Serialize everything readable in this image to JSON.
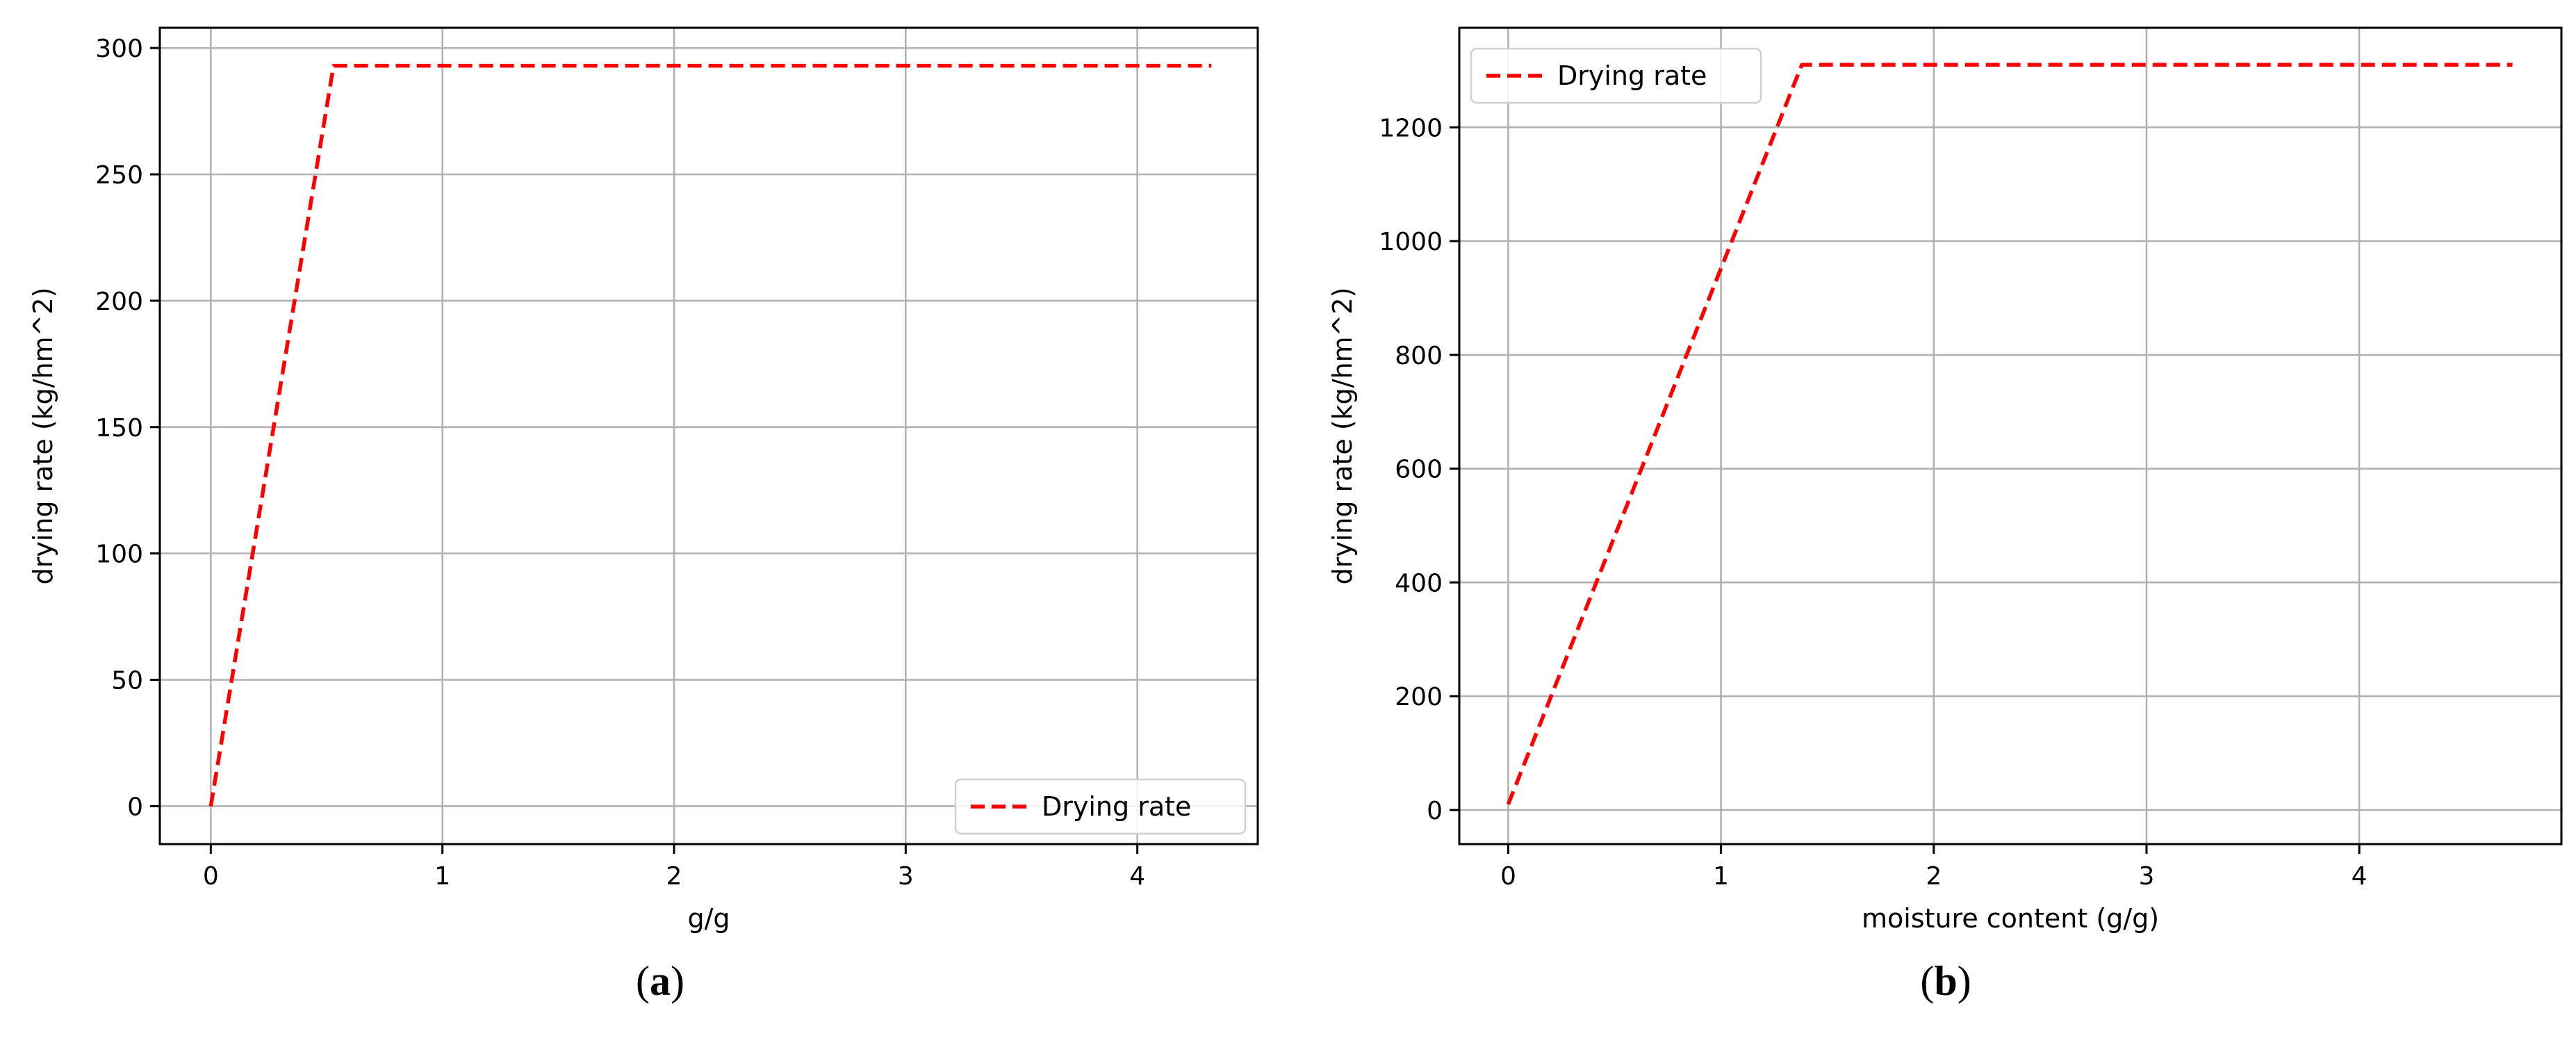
{
  "colors": {
    "series": "#ff0000",
    "grid": "#b0b0b0",
    "axes": "#000000",
    "background": "#ffffff"
  },
  "chart_data": [
    {
      "type": "line",
      "caption": "(a)",
      "xlabel": "g/g",
      "ylabel": "drying rate (kg/hm^2)",
      "xlim": [
        -0.22,
        4.52
      ],
      "ylim": [
        -15,
        308
      ],
      "xticks": [
        0,
        1,
        2,
        3,
        4
      ],
      "yticks": [
        0,
        50,
        100,
        150,
        200,
        250,
        300
      ],
      "grid": true,
      "legend": "lower-right",
      "series": [
        {
          "name": "Drying rate",
          "style": "dashed",
          "x": [
            0,
            0.53,
            4.32
          ],
          "y": [
            0,
            293,
            293
          ]
        }
      ]
    },
    {
      "type": "line",
      "caption": "(b)",
      "xlabel": "moisture content (g/g)",
      "ylabel": "drying rate (kg/hm^2)",
      "xlim": [
        -0.23,
        4.95
      ],
      "ylim": [
        -60,
        1375
      ],
      "xticks": [
        0,
        1,
        2,
        3,
        4
      ],
      "yticks": [
        0,
        200,
        400,
        600,
        800,
        1000,
        1200
      ],
      "grid": true,
      "legend": "upper-left",
      "series": [
        {
          "name": "Drying rate",
          "style": "dashed",
          "x": [
            0,
            1.38,
            4.72
          ],
          "y": [
            10,
            1310,
            1310
          ]
        }
      ]
    }
  ]
}
